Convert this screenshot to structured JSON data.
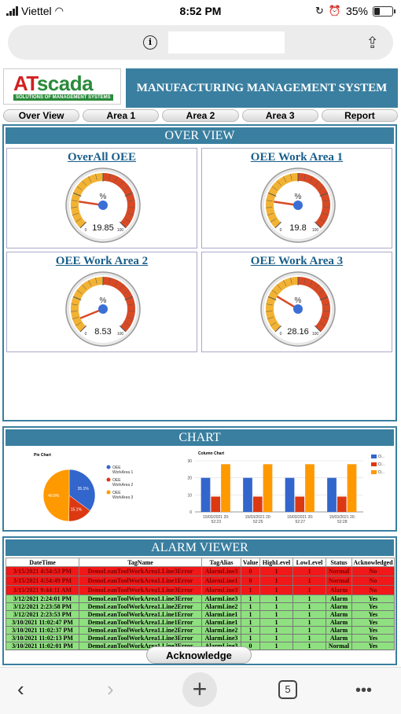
{
  "status_bar": {
    "carrier": "Viettel",
    "time": "8:52 PM",
    "battery": "35%",
    "battery_level": 0.35
  },
  "header": {
    "logo": {
      "part1": "AT",
      "part2": "scada",
      "tagline": "SOLUTIONS OF MANAGEMENT SYSTEMS"
    },
    "title": "MANUFACTURING MANAGEMENT SYSTEM"
  },
  "nav": {
    "tabs": [
      "Over View",
      "Area 1",
      "Area 2",
      "Area 3",
      "Report"
    ]
  },
  "overview": {
    "title": "OVER VIEW",
    "gauges": [
      {
        "title": "OverAll OEE",
        "value": "19.85",
        "num": 19.85
      },
      {
        "title": "OEE Work Area 1",
        "value": "19.8",
        "num": 19.8
      },
      {
        "title": "OEE Work Area 2",
        "value": "8.53",
        "num": 8.53
      },
      {
        "title": "OEE Work Area 3",
        "value": "28.16",
        "num": 28.16
      }
    ],
    "gauge_unit": "%",
    "gauge_min": "0",
    "gauge_max": "100"
  },
  "chart_panel": {
    "title": "CHART"
  },
  "chart_data": [
    {
      "type": "pie",
      "title": "Pie Chart",
      "legend": [
        "OEE WorkArea 1",
        "OEE WorkArea 2",
        "OEE WorkArea 3"
      ],
      "values": [
        35.1,
        15.1,
        49.8
      ],
      "labels": [
        "35.1%",
        "15.1%",
        "49.8%"
      ],
      "colors": [
        "#3366cc",
        "#dc3912",
        "#ff9900"
      ]
    },
    {
      "type": "bar",
      "title": "Column Chart",
      "categories": [
        "15/03/2021 20:52:23",
        "15/03/2021 20:52:25",
        "15/03/2021 20:52:27",
        "15/03/2021 20:52:28"
      ],
      "series": [
        {
          "values": [
            20,
            20,
            20,
            20
          ],
          "color": "#3366cc"
        },
        {
          "values": [
            9,
            9,
            9,
            9
          ],
          "color": "#dc3912"
        },
        {
          "values": [
            28,
            28,
            28,
            28
          ],
          "color": "#ff9900"
        }
      ],
      "legend": [
        "O...",
        "O...",
        "O..."
      ],
      "ylim": [
        0,
        30
      ],
      "yticks": [
        "0",
        "10",
        "20",
        "30"
      ],
      "grid": true,
      "legend_position": "right"
    }
  ],
  "alarm_viewer": {
    "title": "ALARM VIEWER",
    "columns": [
      "DateTime",
      "TagName",
      "TagAlias",
      "Value",
      "HighLevel",
      "LowLevel",
      "Status",
      "Acknowledged"
    ],
    "rows": [
      {
        "state": "red",
        "cells": [
          "3/15/2021 4:54:53 PM",
          "DemoLeanToolWorkArea1.Line3Error",
          "AlarmLine3",
          "0",
          "1",
          "1",
          "Normal",
          "No"
        ]
      },
      {
        "state": "red",
        "cells": [
          "3/15/2021 4:54:49 PM",
          "DemoLeanToolWorkArea1.Line1Error",
          "AlarmLine1",
          "0",
          "1",
          "1",
          "Normal",
          "No"
        ]
      },
      {
        "state": "red",
        "cells": [
          "3/15/2021 9:44:11 AM",
          "DemoLeanToolWorkArea1.Line3Error",
          "AlarmLine3",
          "1",
          "1",
          "1",
          "Alarm",
          "No"
        ]
      },
      {
        "state": "green",
        "cells": [
          "3/12/2021 2:24:01 PM",
          "DemoLeanToolWorkArea1.Line3Error",
          "AlarmLine3",
          "1",
          "1",
          "1",
          "Alarm",
          "Yes"
        ]
      },
      {
        "state": "green",
        "cells": [
          "3/12/2021 2:23:58 PM",
          "DemoLeanToolWorkArea1.Line2Error",
          "AlarmLine2",
          "1",
          "1",
          "1",
          "Alarm",
          "Yes"
        ]
      },
      {
        "state": "green",
        "cells": [
          "3/12/2021 2:23:53 PM",
          "DemoLeanToolWorkArea1.Line1Error",
          "AlarmLine1",
          "1",
          "1",
          "1",
          "Alarm",
          "Yes"
        ]
      },
      {
        "state": "green",
        "cells": [
          "3/10/2021 11:02:47 PM",
          "DemoLeanToolWorkArea1.Line1Error",
          "AlarmLine1",
          "1",
          "1",
          "1",
          "Alarm",
          "Yes"
        ]
      },
      {
        "state": "green",
        "cells": [
          "3/10/2021 11:02:37 PM",
          "DemoLeanToolWorkArea1.Line2Error",
          "AlarmLine2",
          "1",
          "1",
          "1",
          "Alarm",
          "Yes"
        ]
      },
      {
        "state": "green",
        "cells": [
          "3/10/2021 11:02:13 PM",
          "DemoLeanToolWorkArea1.Line3Error",
          "AlarmLine3",
          "1",
          "1",
          "1",
          "Alarm",
          "Yes"
        ]
      },
      {
        "state": "green",
        "cells": [
          "3/10/2021 11:02:01 PM",
          "DemoLeanToolWorkArea1.Line3Error",
          "AlarmLine3",
          "0",
          "1",
          "1",
          "Normal",
          "Yes"
        ]
      }
    ],
    "acknowledge_label": "Acknowledge"
  },
  "browser_bar": {
    "tab_count": "5"
  }
}
